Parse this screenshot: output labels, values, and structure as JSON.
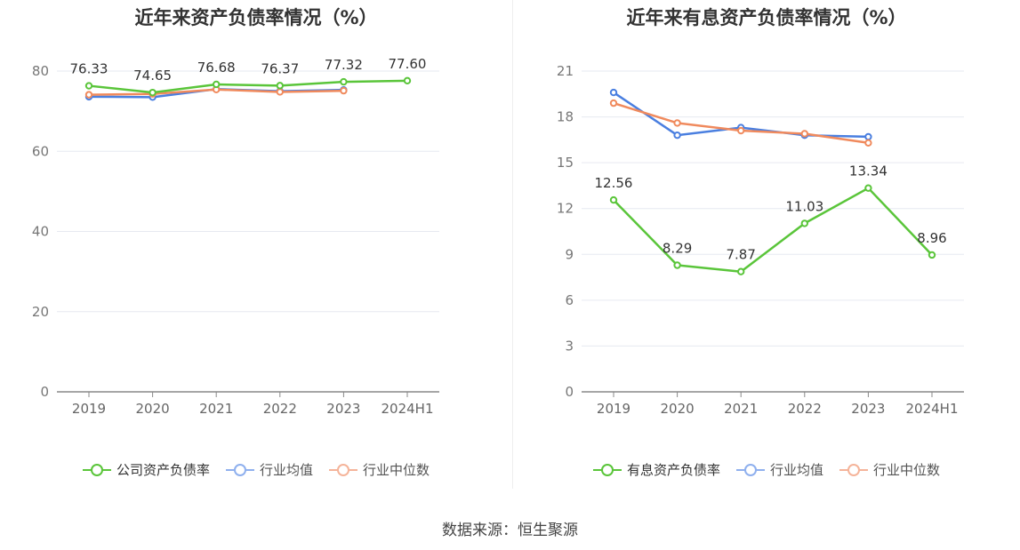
{
  "charts": [
    {
      "title": "近年来资产负债率情况（%）",
      "legend": [
        "公司资产负债率",
        "行业均值",
        "行业中位数"
      ]
    },
    {
      "title": "近年来有息资产负债率情况（%）",
      "legend": [
        "有息资产负债率",
        "行业均值",
        "行业中位数"
      ]
    }
  ],
  "source": "数据来源：恒生聚源",
  "colors": {
    "company": "#5ac53a",
    "average": "#4a7fe0",
    "median": "#f08a5d"
  },
  "chart_data": [
    {
      "type": "line",
      "title": "近年来资产负债率情况（%）",
      "categories": [
        "2019",
        "2020",
        "2021",
        "2022",
        "2023",
        "2024H1"
      ],
      "ylim": [
        0,
        80
      ],
      "yticks": [
        0,
        20,
        40,
        60,
        80
      ],
      "grid": true,
      "legend_position": "bottom",
      "series": [
        {
          "name": "公司资产负债率",
          "values": [
            76.33,
            74.65,
            76.68,
            76.37,
            77.32,
            77.6
          ],
          "labels": [
            "76.33",
            "74.65",
            "76.68",
            "76.37",
            "77.32",
            "77.60"
          ]
        },
        {
          "name": "行业均值",
          "values": [
            73.6,
            73.5,
            75.5,
            75.0,
            75.3,
            null
          ]
        },
        {
          "name": "行业中位数",
          "values": [
            74.1,
            74.3,
            75.4,
            74.8,
            75.1,
            null
          ]
        }
      ]
    },
    {
      "type": "line",
      "title": "近年来有息资产负债率情况（%）",
      "categories": [
        "2019",
        "2020",
        "2021",
        "2022",
        "2023",
        "2024H1"
      ],
      "ylim": [
        0,
        21
      ],
      "yticks": [
        0,
        3,
        6,
        9,
        12,
        15,
        18,
        21
      ],
      "grid": true,
      "legend_position": "bottom",
      "series": [
        {
          "name": "有息资产负债率",
          "values": [
            12.56,
            8.29,
            7.87,
            11.03,
            13.34,
            8.96
          ],
          "labels": [
            "12.56",
            "8.29",
            "7.87",
            "11.03",
            "13.34",
            "8.96"
          ]
        },
        {
          "name": "行业均值",
          "values": [
            19.6,
            16.8,
            17.3,
            16.8,
            16.7,
            null
          ]
        },
        {
          "name": "行业中位数",
          "values": [
            18.9,
            17.6,
            17.1,
            16.9,
            16.3,
            null
          ]
        }
      ]
    }
  ]
}
